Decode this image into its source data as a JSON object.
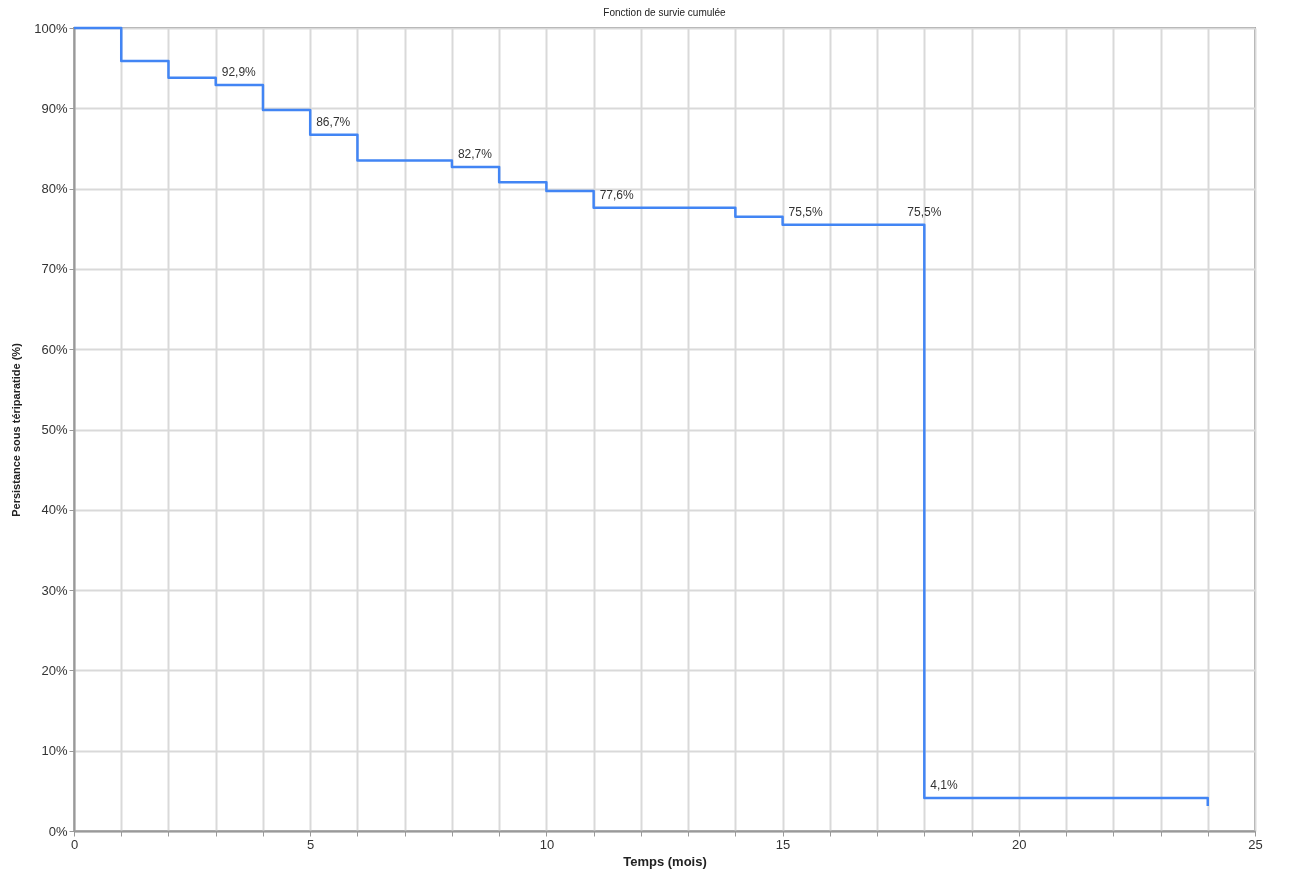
{
  "chart_data": {
    "type": "step",
    "title": "Fonction de survie cumulée",
    "xlabel": "Temps (mois)",
    "ylabel": "Persistance sous tériparatide (%)",
    "x": [
      0,
      1,
      2,
      3,
      4,
      5,
      6,
      8,
      9,
      10,
      11,
      14,
      15,
      18,
      24
    ],
    "series": [
      {
        "color": "#4285f4",
        "values": [
          100,
          95.9,
          93.8,
          92.9,
          89.8,
          86.7,
          83.5,
          82.7,
          80.8,
          79.7,
          77.6,
          76.5,
          75.5,
          4.1,
          3.1
        ],
        "value_labels": [
          null,
          null,
          null,
          "92,9%",
          null,
          "86,7%",
          null,
          "82,7%",
          null,
          null,
          "77,6%",
          null,
          "75,5%",
          "4,1%",
          null
        ]
      }
    ],
    "annotations": [
      {
        "text": "75,5%",
        "x": 18,
        "y": 75.5
      }
    ],
    "xlim": [
      0,
      25
    ],
    "xticks": [
      0,
      {
        "value": 1,
        "label": null
      },
      {
        "value": 2,
        "label": null
      },
      {
        "value": 3,
        "label": null
      },
      {
        "value": 4,
        "label": null
      },
      5,
      {
        "value": 6,
        "label": null
      },
      {
        "value": 7,
        "label": null
      },
      {
        "value": 8,
        "label": null
      },
      {
        "value": 9,
        "label": null
      },
      10,
      {
        "value": 11,
        "label": null
      },
      {
        "value": 12,
        "label": null
      },
      {
        "value": 13,
        "label": null
      },
      {
        "value": 14,
        "label": null
      },
      15,
      {
        "value": 16,
        "label": null
      },
      {
        "value": 17,
        "label": null
      },
      {
        "value": 18,
        "label": null
      },
      {
        "value": 19,
        "label": null
      },
      20,
      {
        "value": 21,
        "label": null
      },
      {
        "value": 22,
        "label": null
      },
      {
        "value": 23,
        "label": null
      },
      {
        "value": 24,
        "label": null
      },
      25
    ],
    "ylim": [
      0,
      100
    ],
    "yticks": [
      {
        "value": 0,
        "label": "0%"
      },
      {
        "value": 10,
        "label": "10%"
      },
      {
        "value": 20,
        "label": "20%"
      },
      {
        "value": 30,
        "label": "30%"
      },
      {
        "value": 40,
        "label": "40%"
      },
      {
        "value": 50,
        "label": "50%"
      },
      {
        "value": 60,
        "label": "60%"
      },
      {
        "value": 70,
        "label": "70%"
      },
      {
        "value": 80,
        "label": "80%"
      },
      {
        "value": 90,
        "label": "90%"
      },
      {
        "value": 100,
        "label": "100%"
      }
    ],
    "grid": true,
    "line_style": "solid",
    "marker": "none"
  }
}
